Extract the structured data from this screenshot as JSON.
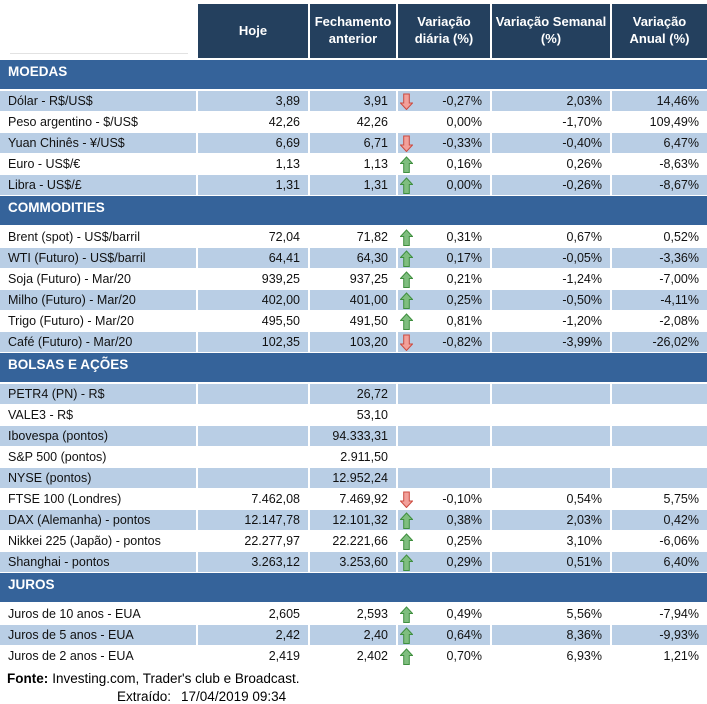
{
  "header": {
    "columns": [
      "Hoje",
      "Fechamento anterior",
      "Variação diária (%)",
      "Variação Semanal (%)",
      "Variação Anual (%)"
    ]
  },
  "colors": {
    "header_bg": "#24405E",
    "section_bg": "#35639A",
    "stripe_bg": "#B9CEE5",
    "row_white_bg": "#FFFFFF",
    "arrow_up_fill": "#7FBE7F",
    "arrow_up_stroke": "#3F8F3F",
    "arrow_down_fill": "#F2A09A",
    "arrow_down_stroke": "#CC4B40"
  },
  "icons": {
    "up": "arrow-up-icon",
    "down": "arrow-down-icon"
  },
  "sections": [
    {
      "id": "moedas",
      "title": "MOEDAS",
      "rows": [
        {
          "label": "Dólar - R$/US$",
          "hoje": "3,89",
          "fechamento": "3,91",
          "arrow": "down",
          "diaria": "-0,27%",
          "semanal": "2,03%",
          "anual": "14,46%"
        },
        {
          "label": "Peso argentino - $/US$",
          "hoje": "42,26",
          "fechamento": "42,26",
          "arrow": "",
          "diaria": "0,00%",
          "semanal": "-1,70%",
          "anual": "109,49%"
        },
        {
          "label": "Yuan Chinês - ¥/US$",
          "hoje": "6,69",
          "fechamento": "6,71",
          "arrow": "down",
          "diaria": "-0,33%",
          "semanal": "-0,40%",
          "anual": "6,47%"
        },
        {
          "label": "Euro - US$/€",
          "hoje": "1,13",
          "fechamento": "1,13",
          "arrow": "up",
          "diaria": "0,16%",
          "semanal": "0,26%",
          "anual": "-8,63%"
        },
        {
          "label": "Libra - US$/£",
          "hoje": "1,31",
          "fechamento": "1,31",
          "arrow": "up",
          "diaria": "0,00%",
          "semanal": "-0,26%",
          "anual": "-8,67%"
        }
      ]
    },
    {
      "id": "commodities",
      "title": "COMMODITIES",
      "rows": [
        {
          "label": "Brent (spot) - US$/barril",
          "hoje": "72,04",
          "fechamento": "71,82",
          "arrow": "up",
          "diaria": "0,31%",
          "semanal": "0,67%",
          "anual": "0,52%"
        },
        {
          "label": "WTI (Futuro) - US$/barril",
          "hoje": "64,41",
          "fechamento": "64,30",
          "arrow": "up",
          "diaria": "0,17%",
          "semanal": "-0,05%",
          "anual": "-3,36%"
        },
        {
          "label": "Soja (Futuro) - Mar/20",
          "hoje": "939,25",
          "fechamento": "937,25",
          "arrow": "up",
          "diaria": "0,21%",
          "semanal": "-1,24%",
          "anual": "-7,00%"
        },
        {
          "label": "Milho (Futuro) - Mar/20",
          "hoje": "402,00",
          "fechamento": "401,00",
          "arrow": "up",
          "diaria": "0,25%",
          "semanal": "-0,50%",
          "anual": "-4,11%"
        },
        {
          "label": "Trigo (Futuro) - Mar/20",
          "hoje": "495,50",
          "fechamento": "491,50",
          "arrow": "up",
          "diaria": "0,81%",
          "semanal": "-1,20%",
          "anual": "-2,08%"
        },
        {
          "label": "Café (Futuro) - Mar/20",
          "hoje": "102,35",
          "fechamento": "103,20",
          "arrow": "down",
          "diaria": "-0,82%",
          "semanal": "-3,99%",
          "anual": "-26,02%"
        }
      ]
    },
    {
      "id": "bolsas-e-acoes",
      "title": "BOLSAS E AÇÕES",
      "rows": [
        {
          "label": "PETR4 (PN) - R$",
          "hoje": "",
          "fechamento": "26,72",
          "arrow": "",
          "diaria": "",
          "semanal": "",
          "anual": ""
        },
        {
          "label": "VALE3 - R$",
          "hoje": "",
          "fechamento": "53,10",
          "arrow": "",
          "diaria": "",
          "semanal": "",
          "anual": ""
        },
        {
          "label": "Ibovespa (pontos)",
          "hoje": "",
          "fechamento": "94.333,31",
          "arrow": "",
          "diaria": "",
          "semanal": "",
          "anual": ""
        },
        {
          "label": "S&P 500 (pontos)",
          "hoje": "",
          "fechamento": "2.911,50",
          "arrow": "",
          "diaria": "",
          "semanal": "",
          "anual": ""
        },
        {
          "label": "NYSE (pontos)",
          "hoje": "",
          "fechamento": "12.952,24",
          "arrow": "",
          "diaria": "",
          "semanal": "",
          "anual": ""
        },
        {
          "label": "FTSE 100 (Londres)",
          "hoje": "7.462,08",
          "fechamento": "7.469,92",
          "arrow": "down",
          "diaria": "-0,10%",
          "semanal": "0,54%",
          "anual": "5,75%"
        },
        {
          "label": "DAX (Alemanha) - pontos",
          "hoje": "12.147,78",
          "fechamento": "12.101,32",
          "arrow": "up",
          "diaria": "0,38%",
          "semanal": "2,03%",
          "anual": "0,42%"
        },
        {
          "label": "Nikkei 225 (Japão) - pontos",
          "hoje": "22.277,97",
          "fechamento": "22.221,66",
          "arrow": "up",
          "diaria": "0,25%",
          "semanal": "3,10%",
          "anual": "-6,06%"
        },
        {
          "label": "Shanghai - pontos",
          "hoje": "3.263,12",
          "fechamento": "3.253,60",
          "arrow": "up",
          "diaria": "0,29%",
          "semanal": "0,51%",
          "anual": "6,40%"
        }
      ]
    },
    {
      "id": "juros",
      "title": "JUROS",
      "rows": [
        {
          "label": "Juros de 10 anos - EUA",
          "hoje": "2,605",
          "fechamento": "2,593",
          "arrow": "up",
          "diaria": "0,49%",
          "semanal": "5,56%",
          "anual": "-7,94%"
        },
        {
          "label": "Juros de 5 anos - EUA",
          "hoje": "2,42",
          "fechamento": "2,40",
          "arrow": "up",
          "diaria": "0,64%",
          "semanal": "8,36%",
          "anual": "-9,93%"
        },
        {
          "label": "Juros de 2 anos - EUA",
          "hoje": "2,419",
          "fechamento": "2,402",
          "arrow": "up",
          "diaria": "0,70%",
          "semanal": "6,93%",
          "anual": "1,21%"
        }
      ]
    }
  ],
  "footer": {
    "fonte_label": "Fonte:",
    "fonte_text": "Investing.com, Trader's club e Broadcast.",
    "extraido_label": "Extraído:",
    "extraido_value": "17/04/2019 09:34"
  }
}
